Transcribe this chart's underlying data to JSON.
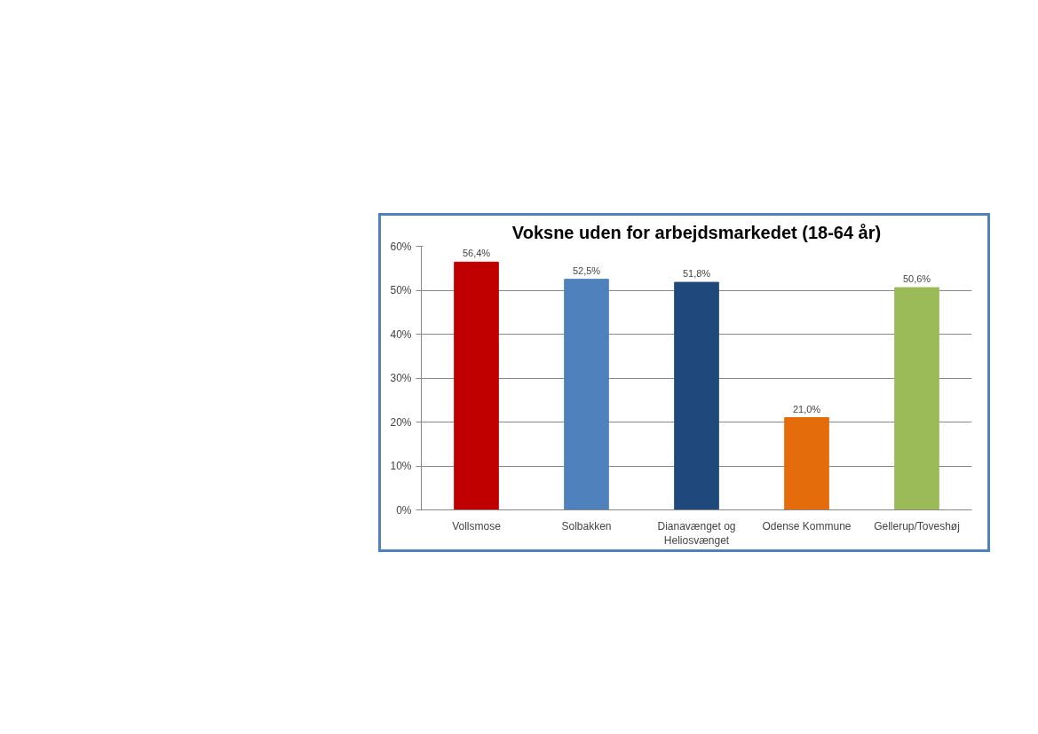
{
  "chart_data": {
    "type": "bar",
    "title": "Voksne uden for arbejdsmarkedet (18-64 år)",
    "categories": [
      "Vollsmose",
      "Solbakken",
      "Dianavænget og Heliosvænget",
      "Odense Kommune",
      "Gellerup/Toveshøj"
    ],
    "values": [
      56.4,
      52.5,
      51.8,
      21.0,
      50.6
    ],
    "colors": [
      "#c00000",
      "#4f81bd",
      "#1f497d",
      "#e46c0a",
      "#9bbb59"
    ],
    "value_labels": [
      "56,4%",
      "52,5%",
      "51,8%",
      "21,0%",
      "50,6%"
    ],
    "ylim": [
      0,
      60
    ],
    "yticks": [
      {
        "value": 0,
        "label": "0%"
      },
      {
        "value": 10,
        "label": "10%"
      },
      {
        "value": 20,
        "label": "20%"
      },
      {
        "value": 30,
        "label": "30%"
      },
      {
        "value": 40,
        "label": "40%"
      },
      {
        "value": 50,
        "label": "50%"
      },
      {
        "value": 60,
        "label": "60%"
      }
    ],
    "grid": "y"
  }
}
